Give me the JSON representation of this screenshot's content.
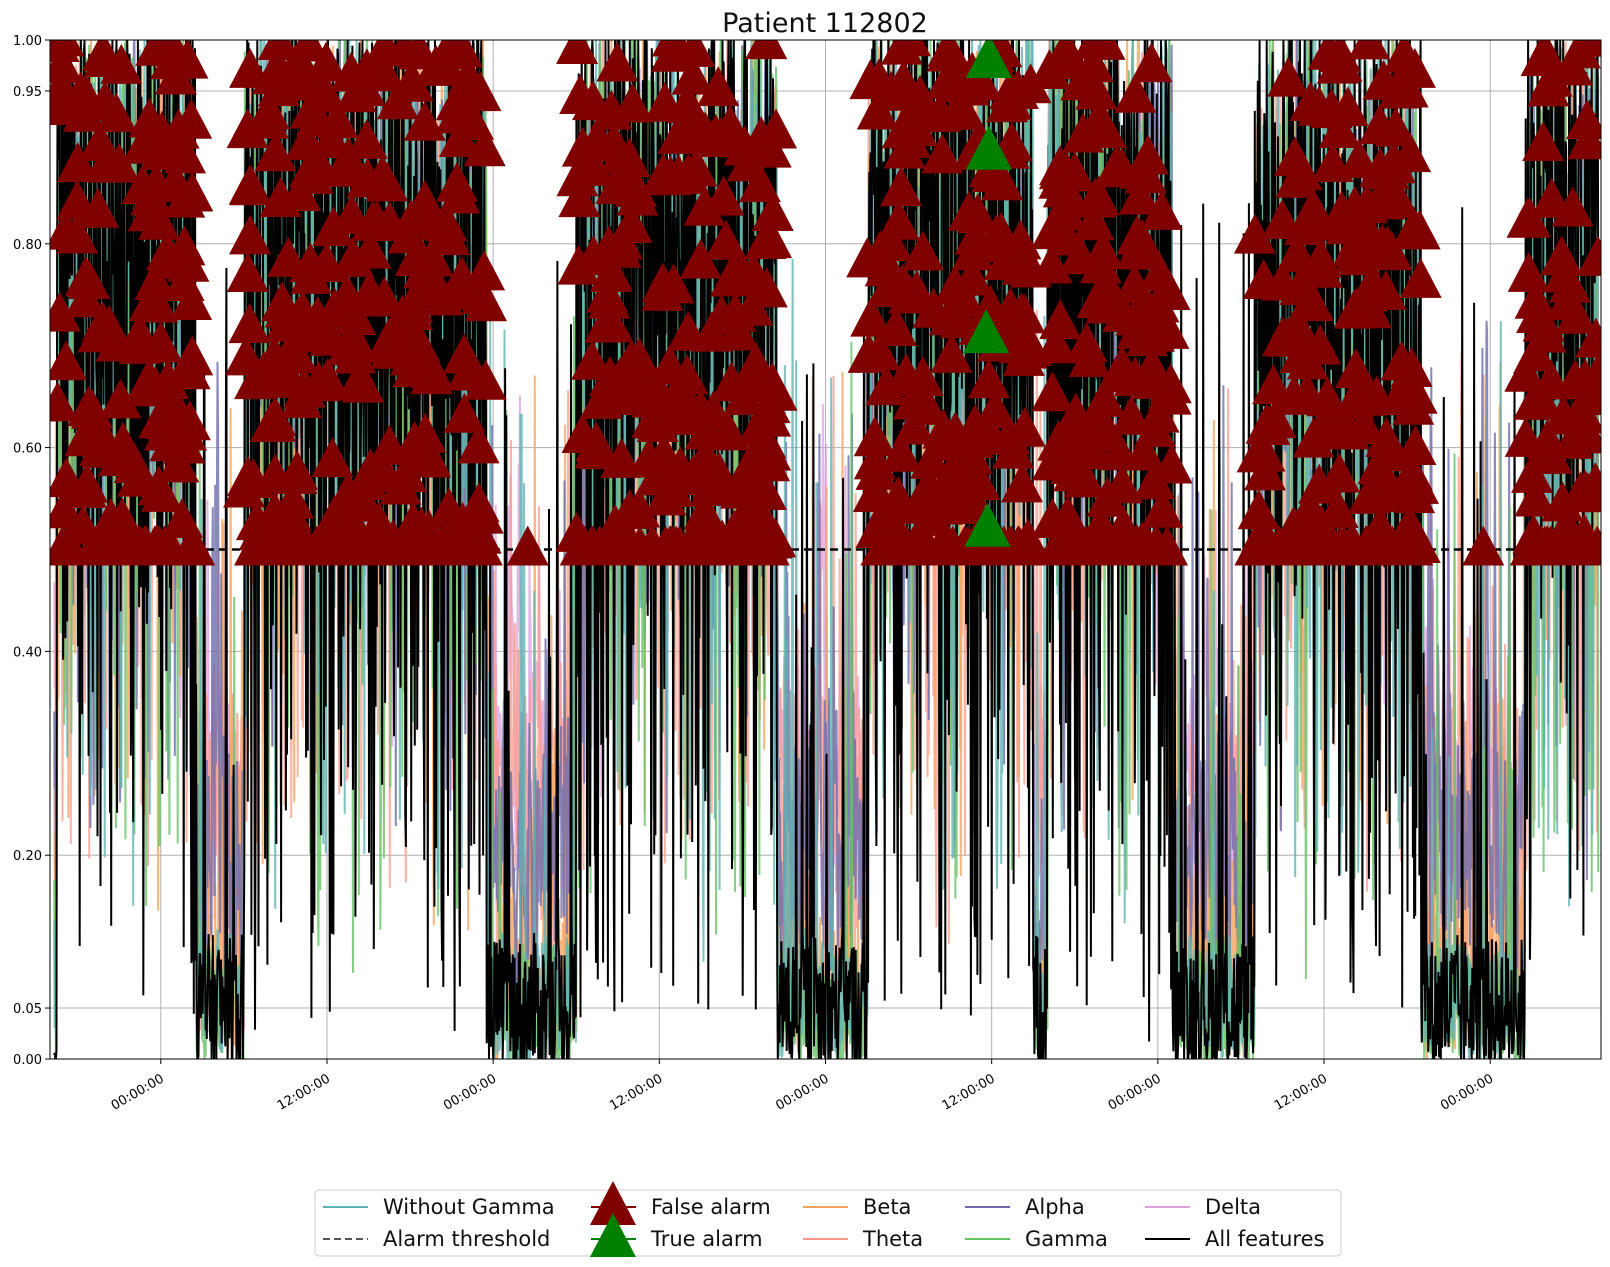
{
  "chart_data": {
    "type": "line",
    "title": "Patient 112802",
    "xlabel": "",
    "ylabel": "",
    "x_axis_unit": "hours",
    "xlim": [
      -8,
      104
    ],
    "ylim": [
      0,
      1
    ],
    "y_ticks": [
      0.0,
      0.05,
      0.2,
      0.4,
      0.6,
      0.8,
      0.95,
      1.0
    ],
    "y_tick_labels": [
      "0.00",
      "0.05",
      "0.20",
      "0.40",
      "0.60",
      "0.80",
      "0.95",
      "1.00"
    ],
    "x_ticks": [
      0,
      12,
      24,
      36,
      48,
      60,
      72,
      84,
      96
    ],
    "x_tick_labels": [
      "00:00:00",
      "12:00:00",
      "00:00:00",
      "12:00:00",
      "00:00:00",
      "12:00:00",
      "00:00:00",
      "12:00:00",
      "00:00:00"
    ],
    "grid": true,
    "legend_position": "bottom-center",
    "alarm_threshold": 0.5,
    "series_colors": {
      "without_gamma": "#5fb3b3",
      "alarm_threshold": "#000000",
      "false_alarm": "#800000",
      "true_alarm": "#008000",
      "beta": "#f4a460",
      "theta": "#fa9a8a",
      "alpha": "#6b6baa",
      "gamma": "#66c266",
      "delta": "#dda0dd",
      "all_features": "#000000"
    },
    "legend": [
      {
        "key": "without_gamma",
        "label": "Without Gamma",
        "style": "line"
      },
      {
        "key": "alarm_threshold",
        "label": "Alarm threshold",
        "style": "dashed"
      },
      {
        "key": "false_alarm",
        "label": "False alarm",
        "style": "triangle"
      },
      {
        "key": "true_alarm",
        "label": "True alarm",
        "style": "triangle"
      },
      {
        "key": "beta",
        "label": "Beta",
        "style": "line"
      },
      {
        "key": "theta",
        "label": "Theta",
        "style": "line"
      },
      {
        "key": "alpha",
        "label": "Alpha",
        "style": "line"
      },
      {
        "key": "gamma",
        "label": "Gamma",
        "style": "line"
      },
      {
        "key": "delta",
        "label": "Delta",
        "style": "line"
      },
      {
        "key": "all_features",
        "label": "All features",
        "style": "line"
      }
    ],
    "true_alarms": [
      {
        "x": 59.8,
        "y": 0.98
      },
      {
        "x": 59.8,
        "y": 0.89
      },
      {
        "x": 59.6,
        "y": 0.71
      },
      {
        "x": 59.7,
        "y": 0.52
      }
    ],
    "high_activity_segments": [
      [
        -7.5,
        2.5
      ],
      [
        6,
        23.5
      ],
      [
        30,
        44.5
      ],
      [
        51,
        63
      ],
      [
        64,
        73
      ],
      [
        79,
        91
      ],
      [
        98.5,
        104
      ]
    ],
    "low_activity_segments": [
      [
        2.5,
        6
      ],
      [
        23.5,
        30
      ],
      [
        44.5,
        51
      ],
      [
        73,
        79
      ],
      [
        91,
        98.5
      ]
    ]
  }
}
